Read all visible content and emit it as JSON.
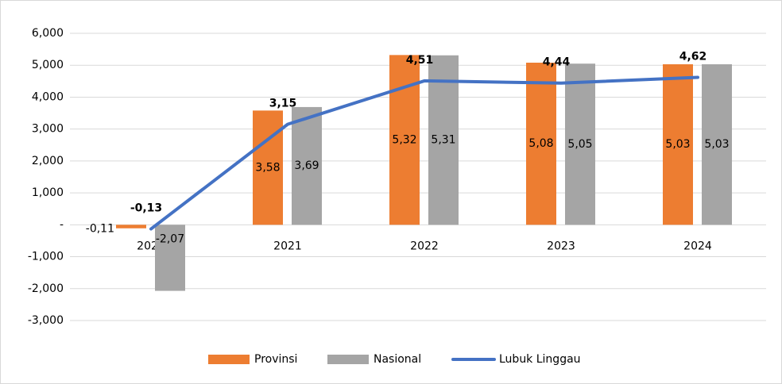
{
  "chart_data": {
    "type": "bar_line",
    "categories": [
      "2020",
      "2021",
      "2022",
      "2023",
      "2024"
    ],
    "series": [
      {
        "name": "Provinsi",
        "type": "bar",
        "color": "#ed7d31",
        "values": [
          -0.11,
          3.58,
          5.32,
          5.08,
          5.03
        ],
        "value_labels": [
          "-0,11",
          "3,58",
          "5,32",
          "5,08",
          "5,03"
        ]
      },
      {
        "name": "Nasional",
        "type": "bar",
        "color": "#a5a5a5",
        "values": [
          -2.07,
          3.69,
          5.31,
          5.05,
          5.03
        ],
        "value_labels": [
          "-2,07",
          "3,69",
          "5,31",
          "5,05",
          "5,03"
        ]
      },
      {
        "name": "Lubuk Linggau",
        "type": "line",
        "color": "#4472c4",
        "values": [
          -0.13,
          3.15,
          4.51,
          4.44,
          4.62
        ],
        "value_labels": [
          "-0,13",
          "3,15",
          "4,51",
          "4,44",
          "4,62"
        ]
      }
    ],
    "ylim": [
      -3,
      6
    ],
    "yticks": [
      {
        "value": -3,
        "label": "-3,000"
      },
      {
        "value": -2,
        "label": "-2,000"
      },
      {
        "value": -1,
        "label": "-1,000"
      },
      {
        "value": 0,
        "label": "-"
      },
      {
        "value": 1,
        "label": "1,000"
      },
      {
        "value": 2,
        "label": "2,000"
      },
      {
        "value": 3,
        "label": "3,000"
      },
      {
        "value": 4,
        "label": "4,000"
      },
      {
        "value": 5,
        "label": "5,000"
      },
      {
        "value": 6,
        "label": "6,000"
      }
    ],
    "grid": true,
    "legend": "bottom"
  }
}
